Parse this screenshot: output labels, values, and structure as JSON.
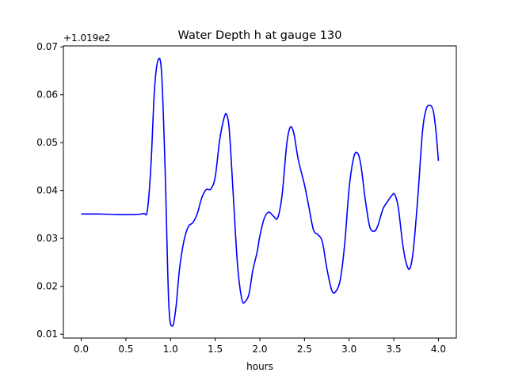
{
  "chart_data": {
    "type": "line",
    "title": "Water Depth h at gauge 130",
    "xlabel": "hours",
    "ylabel": "",
    "offset_label": "+1.019e2",
    "xlim": [
      -0.2,
      4.2
    ],
    "ylim": [
      0.0092,
      0.0702
    ],
    "xticks": [
      0.0,
      0.5,
      1.0,
      1.5,
      2.0,
      2.5,
      3.0,
      3.5,
      4.0
    ],
    "xtick_labels": [
      "0.0",
      "0.5",
      "1.0",
      "1.5",
      "2.0",
      "2.5",
      "3.0",
      "3.5",
      "4.0"
    ],
    "yticks": [
      0.01,
      0.02,
      0.03,
      0.04,
      0.05,
      0.06,
      0.07
    ],
    "ytick_labels": [
      "0.01",
      "0.02",
      "0.03",
      "0.04",
      "0.05",
      "0.06",
      "0.07"
    ],
    "grid": false,
    "series": [
      {
        "color": "#0000ff",
        "x": [
          0.0,
          0.2,
          0.4,
          0.6,
          0.7,
          0.74,
          0.78,
          0.82,
          0.86,
          0.9,
          0.94,
          0.98,
          1.02,
          1.06,
          1.1,
          1.15,
          1.2,
          1.25,
          1.3,
          1.35,
          1.4,
          1.45,
          1.5,
          1.55,
          1.6,
          1.63,
          1.66,
          1.7,
          1.75,
          1.8,
          1.84,
          1.88,
          1.92,
          1.97,
          2.0,
          2.05,
          2.1,
          2.15,
          2.2,
          2.25,
          2.3,
          2.34,
          2.38,
          2.43,
          2.5,
          2.55,
          2.6,
          2.65,
          2.7,
          2.75,
          2.8,
          2.84,
          2.9,
          2.95,
          3.0,
          3.05,
          3.09,
          3.13,
          3.18,
          3.23,
          3.28,
          3.32,
          3.38,
          3.43,
          3.48,
          3.51,
          3.55,
          3.6,
          3.64,
          3.68,
          3.72,
          3.77,
          3.82,
          3.86,
          3.9,
          3.94,
          3.97,
          4.0
        ],
        "y": [
          0.0351,
          0.0351,
          0.035,
          0.035,
          0.0352,
          0.0358,
          0.045,
          0.061,
          0.0672,
          0.0645,
          0.044,
          0.0165,
          0.0117,
          0.0155,
          0.0235,
          0.0295,
          0.0325,
          0.0333,
          0.0352,
          0.0385,
          0.0402,
          0.0403,
          0.0428,
          0.0505,
          0.0552,
          0.0558,
          0.0522,
          0.0398,
          0.0245,
          0.0172,
          0.0169,
          0.0185,
          0.0232,
          0.0272,
          0.0305,
          0.0342,
          0.0355,
          0.0347,
          0.0343,
          0.0392,
          0.0495,
          0.0532,
          0.052,
          0.0465,
          0.0412,
          0.0365,
          0.0318,
          0.0308,
          0.0293,
          0.0238,
          0.0195,
          0.0187,
          0.0213,
          0.0288,
          0.0405,
          0.0468,
          0.0479,
          0.0455,
          0.0382,
          0.0325,
          0.0315,
          0.0326,
          0.0362,
          0.0377,
          0.039,
          0.0392,
          0.0365,
          0.0288,
          0.0248,
          0.0237,
          0.0278,
          0.0388,
          0.052,
          0.0568,
          0.0578,
          0.0568,
          0.0528,
          0.0462
        ]
      }
    ]
  }
}
